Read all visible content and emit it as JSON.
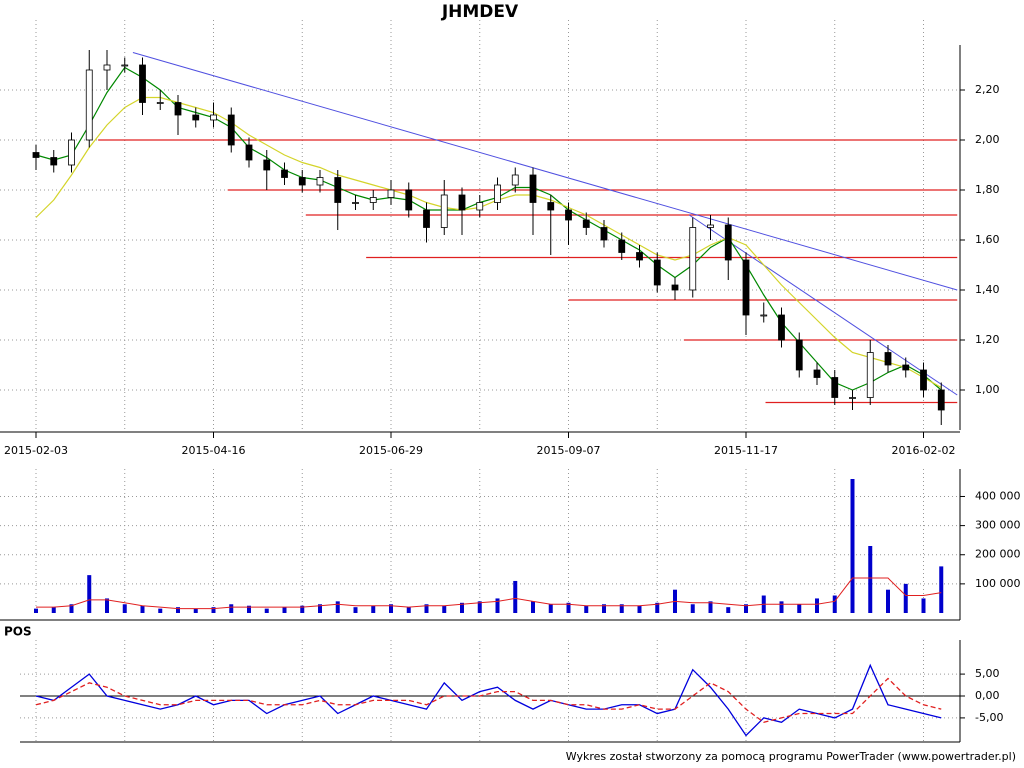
{
  "chart_data": [
    {
      "type": "candlestick",
      "title": "JHMDEV",
      "categories": [
        "2015-02-03",
        null,
        null,
        null,
        null,
        null,
        null,
        null,
        null,
        null,
        "2015-04-16",
        null,
        null,
        null,
        null,
        null,
        null,
        null,
        null,
        null,
        "2015-06-29",
        null,
        null,
        null,
        null,
        null,
        null,
        null,
        null,
        null,
        "2015-09-07",
        null,
        null,
        null,
        null,
        null,
        null,
        null,
        null,
        null,
        "2015-11-17",
        null,
        null,
        null,
        null,
        null,
        null,
        null,
        null,
        null,
        "2016-02-02",
        null
      ],
      "open": [
        1.95,
        1.93,
        1.9,
        2.0,
        2.28,
        2.3,
        2.3,
        2.15,
        2.15,
        2.1,
        2.08,
        2.1,
        1.98,
        1.92,
        1.88,
        1.85,
        1.82,
        1.85,
        1.75,
        1.75,
        1.77,
        1.8,
        1.72,
        1.65,
        1.78,
        1.72,
        1.75,
        1.82,
        1.86,
        1.75,
        1.72,
        1.68,
        1.65,
        1.6,
        1.55,
        1.52,
        1.42,
        1.4,
        1.65,
        1.66,
        1.52,
        1.3,
        1.3,
        1.2,
        1.08,
        1.05,
        0.97,
        0.97,
        1.15,
        1.1,
        1.08,
        1.0
      ],
      "high": [
        1.98,
        1.96,
        2.03,
        2.36,
        2.36,
        2.33,
        2.33,
        2.2,
        2.18,
        2.13,
        2.15,
        2.13,
        2.01,
        1.96,
        1.91,
        1.88,
        1.88,
        1.88,
        1.78,
        1.8,
        1.84,
        1.83,
        1.75,
        1.84,
        1.81,
        1.78,
        1.85,
        1.89,
        1.89,
        1.78,
        1.75,
        1.71,
        1.68,
        1.63,
        1.58,
        1.55,
        1.45,
        1.69,
        1.7,
        1.69,
        1.55,
        1.35,
        1.33,
        1.23,
        1.11,
        1.08,
        1.0,
        1.2,
        1.18,
        1.13,
        1.11,
        1.03
      ],
      "low": [
        1.88,
        1.87,
        1.87,
        1.97,
        2.2,
        2.27,
        2.1,
        2.12,
        2.02,
        2.05,
        2.05,
        1.95,
        1.89,
        1.8,
        1.82,
        1.79,
        1.79,
        1.64,
        1.72,
        1.72,
        1.74,
        1.69,
        1.59,
        1.62,
        1.62,
        1.69,
        1.72,
        1.79,
        1.62,
        1.54,
        1.58,
        1.62,
        1.57,
        1.52,
        1.49,
        1.39,
        1.36,
        1.37,
        1.6,
        1.44,
        1.22,
        1.27,
        1.17,
        1.05,
        1.02,
        0.94,
        0.92,
        0.94,
        1.07,
        1.05,
        0.97,
        0.86
      ],
      "close": [
        1.93,
        1.9,
        2.0,
        2.28,
        2.3,
        2.3,
        2.15,
        2.15,
        2.1,
        2.08,
        2.1,
        1.98,
        1.92,
        1.88,
        1.85,
        1.82,
        1.85,
        1.75,
        1.75,
        1.77,
        1.8,
        1.72,
        1.65,
        1.78,
        1.72,
        1.75,
        1.82,
        1.86,
        1.75,
        1.72,
        1.68,
        1.65,
        1.6,
        1.55,
        1.52,
        1.42,
        1.4,
        1.65,
        1.66,
        1.52,
        1.3,
        1.3,
        1.2,
        1.08,
        1.05,
        0.97,
        0.97,
        1.15,
        1.1,
        1.08,
        1.0,
        0.92
      ],
      "up_color": "#ffffff",
      "down_color": "#000000",
      "series": [
        {
          "color": "#008800",
          "values": [
            1.94,
            1.92,
            1.94,
            2.06,
            2.19,
            2.29,
            2.25,
            2.2,
            2.13,
            2.11,
            2.09,
            2.05,
            1.97,
            1.93,
            1.88,
            1.85,
            1.84,
            1.81,
            1.78,
            1.76,
            1.77,
            1.76,
            1.72,
            1.72,
            1.72,
            1.75,
            1.77,
            1.81,
            1.81,
            1.78,
            1.72,
            1.68,
            1.64,
            1.6,
            1.56,
            1.5,
            1.45,
            1.5,
            1.57,
            1.61,
            1.5,
            1.38,
            1.27,
            1.19,
            1.11,
            1.03,
            1.0,
            1.03,
            1.07,
            1.1,
            1.06,
            1.0
          ]
        },
        {
          "color": "#d4d42a",
          "values": [
            1.69,
            1.76,
            1.86,
            1.97,
            2.06,
            2.13,
            2.17,
            2.17,
            2.15,
            2.13,
            2.11,
            2.07,
            2.02,
            1.98,
            1.94,
            1.91,
            1.89,
            1.86,
            1.84,
            1.82,
            1.8,
            1.78,
            1.75,
            1.73,
            1.72,
            1.73,
            1.76,
            1.78,
            1.78,
            1.76,
            1.73,
            1.7,
            1.66,
            1.62,
            1.58,
            1.54,
            1.52,
            1.54,
            1.58,
            1.61,
            1.58,
            1.5,
            1.42,
            1.35,
            1.28,
            1.21,
            1.15,
            1.13,
            1.11,
            1.09,
            1.05,
            1.01
          ]
        }
      ],
      "hlines_color": "#e02020",
      "hlines": [
        {
          "y": 2.0,
          "x": [
            3.5,
            51.9
          ]
        },
        {
          "y": 1.8,
          "x": [
            10.8,
            51.9
          ]
        },
        {
          "y": 1.7,
          "x": [
            15.2,
            51.9
          ]
        },
        {
          "y": 1.53,
          "x": [
            18.6,
            51.9
          ]
        },
        {
          "y": 1.36,
          "x": [
            30,
            51.9
          ]
        },
        {
          "y": 1.2,
          "x": [
            36.5,
            51.9
          ]
        },
        {
          "y": 0.95,
          "x": [
            41.1,
            51.9
          ]
        }
      ],
      "trendlines_color": "#5050e0",
      "trendlines": [
        {
          "x": [
            5.46,
            51.9
          ],
          "y": [
            2.35,
            1.4
          ]
        },
        {
          "x": [
            36.8,
            51.9
          ],
          "y": [
            1.7,
            0.98
          ]
        }
      ],
      "ylim": [
        0.84,
        2.44
      ],
      "yticks": [
        {
          "value": 1.0,
          "label": "1,00"
        },
        {
          "value": 1.2,
          "label": "1,20"
        },
        {
          "value": 1.4,
          "label": "1,40"
        },
        {
          "value": 1.6,
          "label": "1,60"
        },
        {
          "value": 1.8,
          "label": "1,80"
        },
        {
          "value": 2.0,
          "label": "2,00"
        },
        {
          "value": 2.2,
          "label": "2,20"
        }
      ],
      "grid": true
    },
    {
      "type": "bar",
      "color": "#0000cc",
      "values": [
        15000,
        20000,
        30000,
        130000,
        50000,
        30000,
        25000,
        15000,
        20000,
        15000,
        20000,
        30000,
        25000,
        15000,
        20000,
        25000,
        30000,
        40000,
        20000,
        25000,
        30000,
        20000,
        30000,
        25000,
        35000,
        40000,
        50000,
        110000,
        40000,
        30000,
        35000,
        25000,
        30000,
        30000,
        25000,
        35000,
        80000,
        30000,
        40000,
        20000,
        30000,
        60000,
        40000,
        30000,
        50000,
        60000,
        460000,
        230000,
        80000,
        100000,
        50000,
        160000
      ],
      "series": [
        {
          "color": "#e02020",
          "values": [
            20000,
            20000,
            25000,
            45000,
            45000,
            35000,
            25000,
            20000,
            15000,
            15000,
            15000,
            20000,
            20000,
            20000,
            20000,
            20000,
            25000,
            30000,
            25000,
            25000,
            25000,
            20000,
            25000,
            25000,
            30000,
            35000,
            40000,
            50000,
            40000,
            30000,
            30000,
            25000,
            25000,
            25000,
            25000,
            30000,
            40000,
            35000,
            35000,
            30000,
            25000,
            30000,
            30000,
            30000,
            30000,
            40000,
            120000,
            120000,
            120000,
            60000,
            60000,
            70000
          ]
        }
      ],
      "ylim": [
        0,
        460000
      ],
      "yticks": [
        {
          "value": 100000,
          "label": "100 000"
        },
        {
          "value": 200000,
          "label": "200 000"
        },
        {
          "value": 300000,
          "label": "300 000"
        },
        {
          "value": 400000,
          "label": "400 000"
        }
      ],
      "grid": true
    },
    {
      "type": "line",
      "title": "POS",
      "series": [
        {
          "color": "#0000dd",
          "dash": false,
          "values": [
            0,
            -1,
            2,
            5,
            0,
            -1,
            -2,
            -3,
            -2,
            0,
            -2,
            -1,
            -1,
            -4,
            -2,
            -1,
            0,
            -4,
            -2,
            0,
            -1,
            -2,
            -3,
            3,
            -1,
            1,
            2,
            -1,
            -3,
            -1,
            -2,
            -3,
            -3,
            -2,
            -2,
            -4,
            -3,
            6,
            2,
            -3,
            -9,
            -5,
            -6,
            -3,
            -4,
            -5,
            -3,
            7,
            -2,
            -3,
            -4,
            -5
          ]
        },
        {
          "color": "#e02020",
          "dash": true,
          "values": [
            -2,
            -1,
            1,
            3,
            2,
            0,
            -1,
            -2,
            -2,
            -1,
            -1,
            -1,
            -1,
            -2,
            -2,
            -2,
            -1,
            -2,
            -2,
            -1,
            -1,
            -1,
            -2,
            0,
            0,
            0,
            1,
            1,
            -1,
            -1,
            -2,
            -2,
            -3,
            -3,
            -2,
            -3,
            -3,
            0,
            3,
            1,
            -3,
            -6,
            -5,
            -4,
            -4,
            -4,
            -4,
            0,
            4,
            0,
            -2,
            -3
          ]
        }
      ],
      "ylim": [
        -10.5,
        10.5
      ],
      "yticks": [
        {
          "value": -5,
          "label": "-5,00"
        },
        {
          "value": 0,
          "label": "0,00"
        },
        {
          "value": 5,
          "label": "5,00"
        }
      ],
      "grid": true
    }
  ],
  "footer": "Wykres został stworzony za pomocą programu PowerTrader (www.powertrader.pl)"
}
